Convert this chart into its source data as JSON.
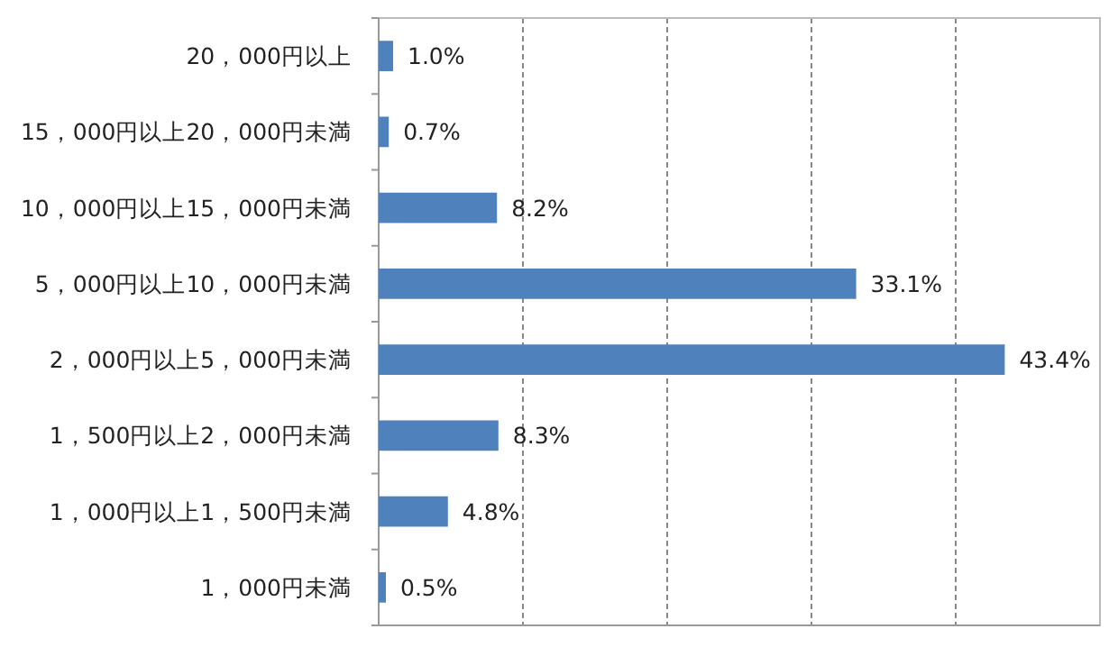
{
  "chart_data": {
    "type": "bar",
    "orientation": "horizontal",
    "categories": [
      "20，000円以上",
      "15，000円以上20，000円未満",
      "10，000円以上15，000円未満",
      "5，000円以上10，000円未満",
      "2，000円以上5，000円未満",
      "1，500円以上2，000円未満",
      "1，000円以上1，500円未満",
      "1，000円未満"
    ],
    "values": [
      1.0,
      0.7,
      8.2,
      33.1,
      43.4,
      8.3,
      4.8,
      0.5
    ],
    "value_labels": [
      "1.0%",
      "0.7%",
      "8.2%",
      "33.1%",
      "43.4%",
      "8.3%",
      "4.8%",
      "0.5%"
    ],
    "color": "#4f81bd",
    "xlim": [
      0,
      50
    ],
    "xticks": [
      {
        "value": 0,
        "label": null
      },
      {
        "value": 10,
        "label": null
      },
      {
        "value": 20,
        "label": null
      },
      {
        "value": 30,
        "label": null
      },
      {
        "value": 40,
        "label": null
      },
      {
        "value": 50,
        "label": null
      }
    ],
    "grid": "x",
    "tick_labels": "y"
  }
}
